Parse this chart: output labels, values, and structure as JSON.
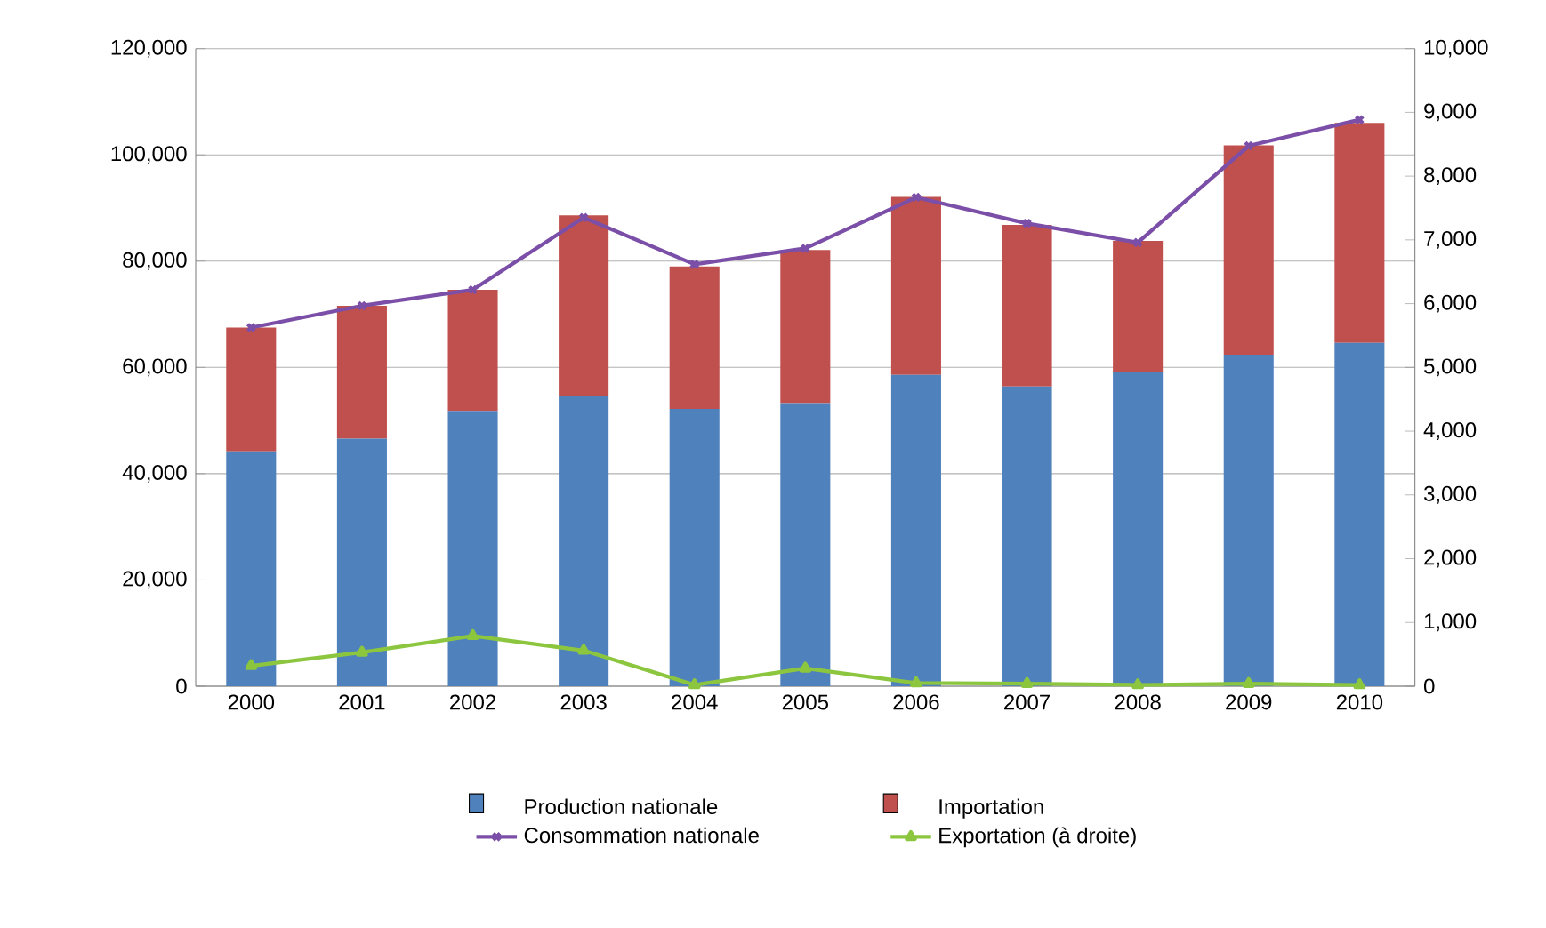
{
  "chart_data": {
    "type": "bar",
    "stacked": true,
    "grid": "y",
    "legend": "bottom",
    "categories": [
      "2000",
      "2001",
      "2002",
      "2003",
      "2004",
      "2005",
      "2006",
      "2007",
      "2008",
      "2009",
      "2010"
    ],
    "series": [
      {
        "name": "Production nationale",
        "color": "#4f81bd",
        "values": [
          44200,
          46600,
          51800,
          54700,
          52200,
          53300,
          58600,
          56400,
          59100,
          62400,
          64600
        ]
      },
      {
        "name": "Importation",
        "color": "#c0504d",
        "values": [
          23300,
          25000,
          22800,
          33900,
          26800,
          28800,
          33500,
          30400,
          24700,
          39400,
          41400
        ]
      },
      {
        "name": "Consommation nationale",
        "type": "line",
        "color": "#7b4fa8",
        "marker": "cross",
        "values": [
          67500,
          71600,
          74600,
          88200,
          79400,
          82400,
          92000,
          87100,
          83500,
          101700,
          106600
        ]
      },
      {
        "name": "Exportation (à droite)",
        "type": "line",
        "axis": "y2",
        "color": "#8cc63f",
        "marker": "triangle",
        "values": [
          320,
          530,
          790,
          560,
          20,
          280,
          50,
          40,
          20,
          40,
          20
        ]
      }
    ],
    "ylim": [
      0,
      120000
    ],
    "yticks": [
      {
        "value": 0,
        "label": "0"
      },
      {
        "value": 20000,
        "label": "20,000"
      },
      {
        "value": 40000,
        "label": "40,000"
      },
      {
        "value": 60000,
        "label": "60,000"
      },
      {
        "value": 80000,
        "label": "80,000"
      },
      {
        "value": 100000,
        "label": "100,000"
      },
      {
        "value": 120000,
        "label": "120,000"
      }
    ],
    "y2lim": [
      0,
      10000
    ],
    "y2ticks": [
      {
        "value": 0,
        "label": "0"
      },
      {
        "value": 1000,
        "label": "1,000"
      },
      {
        "value": 2000,
        "label": "2,000"
      },
      {
        "value": 3000,
        "label": "3,000"
      },
      {
        "value": 4000,
        "label": "4,000"
      },
      {
        "value": 5000,
        "label": "5,000"
      },
      {
        "value": 6000,
        "label": "6,000"
      },
      {
        "value": 7000,
        "label": "7,000"
      },
      {
        "value": 8000,
        "label": "8,000"
      },
      {
        "value": 9000,
        "label": "9,000"
      },
      {
        "value": 10000,
        "label": "10,000"
      }
    ]
  }
}
